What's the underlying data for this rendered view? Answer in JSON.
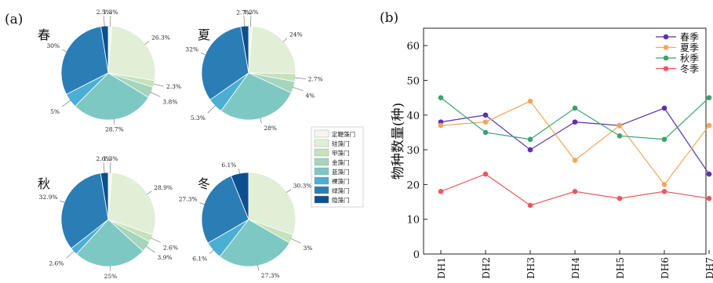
{
  "panel_a_label": "(a)",
  "panel_b_label": "(b)",
  "chart_data": [
    {
      "type": "pie",
      "season": "春",
      "categories": [
        "定鞭藻门",
        "硅藻门",
        "甲藻门",
        "金藻门",
        "蓝藻门",
        "裸藻门",
        "绿藻门",
        "隐藻门"
      ],
      "values": [
        1.3,
        26.3,
        2.3,
        3.8,
        28.7,
        5,
        30,
        2.5
      ],
      "labels": [
        "1.3%",
        "26.3%",
        "2.3%",
        "3.8%",
        "28.7%",
        "5%",
        "30%",
        "2.5%"
      ]
    },
    {
      "type": "pie",
      "season": "夏",
      "categories": [
        "定鞭藻门",
        "硅藻门",
        "甲藻门",
        "金藻门",
        "蓝藻门",
        "裸藻门",
        "绿藻门",
        "隐藻门"
      ],
      "values": [
        1.3,
        24,
        2.7,
        4,
        28,
        5.3,
        32,
        2.7
      ],
      "labels": [
        "1.3%",
        "24%",
        "2.7%",
        "4%",
        "28%",
        "5.3%",
        "32%",
        "2.7%"
      ]
    },
    {
      "type": "pie",
      "season": "秋",
      "categories": [
        "定鞭藻门",
        "硅藻门",
        "甲藻门",
        "金藻门",
        "蓝藻门",
        "裸藻门",
        "绿藻门",
        "隐藻门"
      ],
      "values": [
        1.3,
        28.9,
        2.6,
        3.9,
        25,
        2.6,
        32.9,
        2.6
      ],
      "labels": [
        "1.3%",
        "28.9%",
        "2.6%",
        "3.9%",
        "25%",
        "2.6%",
        "32.9%",
        "2.6%"
      ]
    },
    {
      "type": "pie",
      "season": "冬",
      "categories": [
        "硅藻门",
        "甲藻门",
        "蓝藻门",
        "裸藻门",
        "绿藻门",
        "隐藻门"
      ],
      "values": [
        30.3,
        3,
        27.3,
        6.1,
        27.3,
        6.1
      ],
      "labels": [
        "30.3%",
        "3%",
        "27.3%",
        "6.1%",
        "27.3%",
        "6.1%"
      ]
    },
    {
      "type": "line",
      "categories": [
        "DH1",
        "DH2",
        "DH3",
        "DH4",
        "DH5",
        "DH6",
        "DH7"
      ],
      "ylabel": "物种数量(种)",
      "ylim": [
        0,
        65
      ],
      "yticks": [
        0,
        10,
        20,
        30,
        40,
        50,
        60
      ],
      "grid": false,
      "legend_position": "top-right",
      "series": [
        {
          "name": "春季",
          "color": "#5b2fb0",
          "values": [
            38,
            40,
            30,
            38,
            37,
            42,
            23
          ]
        },
        {
          "name": "夏季",
          "color": "#f2a65a",
          "values": [
            37,
            38,
            44,
            27,
            37,
            20,
            37
          ]
        },
        {
          "name": "秋季",
          "color": "#3aa36c",
          "values": [
            45,
            35,
            33,
            42,
            34,
            33,
            45
          ]
        },
        {
          "name": "冬季",
          "color": "#e8595e",
          "values": [
            18,
            23,
            14,
            18,
            16,
            18,
            16
          ]
        }
      ]
    }
  ],
  "pie_legend": [
    {
      "name": "定鞭藻门",
      "color": "#f3f7ec"
    },
    {
      "name": "硅藻门",
      "color": "#e0efd6"
    },
    {
      "name": "甲藻门",
      "color": "#c5e2bd"
    },
    {
      "name": "金藻门",
      "color": "#a5d5bc"
    },
    {
      "name": "蓝藻门",
      "color": "#7ec8c4"
    },
    {
      "name": "裸藻门",
      "color": "#4baed3"
    },
    {
      "name": "绿藻门",
      "color": "#2b7db5"
    },
    {
      "name": "隐藻门",
      "color": "#0c4f92"
    }
  ]
}
